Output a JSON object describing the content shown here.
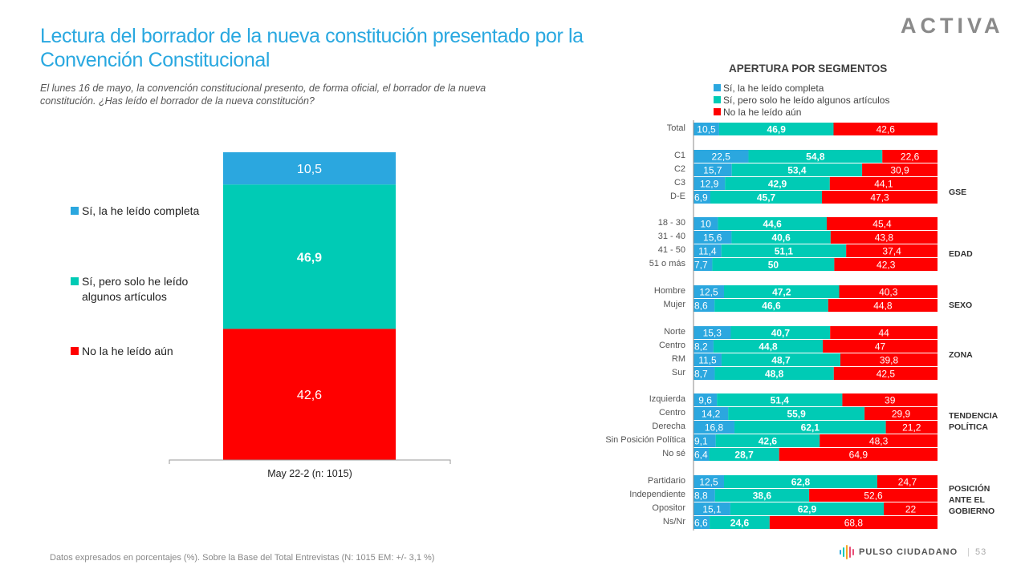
{
  "header": {
    "title": "Lectura del borrador de la nueva constitución presentado por la Convención Constitucional",
    "subtitle": "El lunes 16 de mayo, la convención constitucional presento, de forma oficial, el borrador de la nueva constitución. ¿Has leído el borrador de la nueva constitución?",
    "logo": "ACTIVA"
  },
  "colors": {
    "complete": "#2ba7df",
    "partial": "#00cbb5",
    "not_read": "#ff0000",
    "title": "#29a8e0"
  },
  "chart_data": [
    {
      "type": "bar",
      "stacked": true,
      "orientation": "vertical",
      "categories": [
        "May 22-2 (n: 1015)"
      ],
      "series": [
        {
          "name": "Sí, la he leído completa",
          "values": [
            10.5
          ],
          "labels": [
            "10,5"
          ]
        },
        {
          "name": "Sí, pero solo he leído algunos artículos",
          "values": [
            46.9
          ],
          "labels": [
            "46,9"
          ]
        },
        {
          "name": "No la he leído aún",
          "values": [
            42.6
          ],
          "labels": [
            "42,6"
          ]
        }
      ],
      "legend": {
        "position": "left",
        "entries": [
          "Sí, la he leído completa",
          "Sí, pero solo he leído algunos artículos",
          "No la he leído aún"
        ]
      },
      "ylim": [
        0,
        100
      ],
      "grid": false
    },
    {
      "type": "bar",
      "stacked": true,
      "orientation": "horizontal",
      "title": "APERTURA POR SEGMENTOS",
      "legend": {
        "position": "top",
        "entries": [
          "Sí, la he leído completa",
          "Sí, pero solo he leído algunos artículos",
          "No la he leído aún"
        ]
      },
      "xlim": [
        0,
        100
      ],
      "grid": false,
      "groups": [
        {
          "name": "",
          "rows": [
            {
              "label": "Total",
              "values": [
                10.5,
                46.9,
                42.6
              ],
              "labels": [
                "10,5",
                "46,9",
                "42,6"
              ]
            }
          ]
        },
        {
          "name": "GSE",
          "rows": [
            {
              "label": "C1",
              "values": [
                22.5,
                54.8,
                22.6
              ],
              "labels": [
                "22,5",
                "54,8",
                "22,6"
              ]
            },
            {
              "label": "C2",
              "values": [
                15.7,
                53.4,
                30.9
              ],
              "labels": [
                "15,7",
                "53,4",
                "30,9"
              ]
            },
            {
              "label": "C3",
              "values": [
                12.9,
                42.9,
                44.1
              ],
              "labels": [
                "12,9",
                "42,9",
                "44,1"
              ]
            },
            {
              "label": "D-E",
              "values": [
                6.9,
                45.7,
                47.3
              ],
              "labels": [
                "6,9",
                "45,7",
                "47,3"
              ]
            }
          ]
        },
        {
          "name": "EDAD",
          "rows": [
            {
              "label": "18 - 30",
              "values": [
                10,
                44.6,
                45.4
              ],
              "labels": [
                "10",
                "44,6",
                "45,4"
              ]
            },
            {
              "label": "31 - 40",
              "values": [
                15.6,
                40.6,
                43.8
              ],
              "labels": [
                "15,6",
                "40,6",
                "43,8"
              ]
            },
            {
              "label": "41 - 50",
              "values": [
                11.4,
                51.1,
                37.4
              ],
              "labels": [
                "11,4",
                "51,1",
                "37,4"
              ]
            },
            {
              "label": "51 o más",
              "values": [
                7.7,
                50,
                42.3
              ],
              "labels": [
                "7,7",
                "50",
                "42,3"
              ]
            }
          ]
        },
        {
          "name": "SEXO",
          "rows": [
            {
              "label": "Hombre",
              "values": [
                12.5,
                47.2,
                40.3
              ],
              "labels": [
                "12,5",
                "47,2",
                "40,3"
              ]
            },
            {
              "label": "Mujer",
              "values": [
                8.6,
                46.6,
                44.8
              ],
              "labels": [
                "8,6",
                "46,6",
                "44,8"
              ]
            }
          ]
        },
        {
          "name": "ZONA",
          "rows": [
            {
              "label": "Norte",
              "values": [
                15.3,
                40.7,
                44
              ],
              "labels": [
                "15,3",
                "40,7",
                "44"
              ]
            },
            {
              "label": "Centro",
              "values": [
                8.2,
                44.8,
                47
              ],
              "labels": [
                "8,2",
                "44,8",
                "47"
              ]
            },
            {
              "label": "RM",
              "values": [
                11.5,
                48.7,
                39.8
              ],
              "labels": [
                "11,5",
                "48,7",
                "39,8"
              ]
            },
            {
              "label": "Sur",
              "values": [
                8.7,
                48.8,
                42.5
              ],
              "labels": [
                "8,7",
                "48,8",
                "42,5"
              ]
            }
          ]
        },
        {
          "name": "TENDENCIA POLÍTICA",
          "rows": [
            {
              "label": "Izquierda",
              "values": [
                9.6,
                51.4,
                39
              ],
              "labels": [
                "9,6",
                "51,4",
                "39"
              ]
            },
            {
              "label": "Centro",
              "values": [
                14.2,
                55.9,
                29.9
              ],
              "labels": [
                "14,2",
                "55,9",
                "29,9"
              ]
            },
            {
              "label": "Derecha",
              "values": [
                16.8,
                62.1,
                21.2
              ],
              "labels": [
                "16,8",
                "62,1",
                "21,2"
              ]
            },
            {
              "label": "Sin Posición Política",
              "values": [
                9.1,
                42.6,
                48.3
              ],
              "labels": [
                "9,1",
                "42,6",
                "48,3"
              ]
            },
            {
              "label": "No sé",
              "values": [
                6.4,
                28.7,
                64.9
              ],
              "labels": [
                "6,4",
                "28,7",
                "64,9"
              ]
            }
          ]
        },
        {
          "name": "POSICIÓN ANTE EL GOBIERNO",
          "rows": [
            {
              "label": "Partidario",
              "values": [
                12.5,
                62.8,
                24.7
              ],
              "labels": [
                "12,5",
                "62,8",
                "24,7"
              ]
            },
            {
              "label": "Independiente",
              "values": [
                8.8,
                38.6,
                52.6
              ],
              "labels": [
                "8,8",
                "38,6",
                "52,6"
              ]
            },
            {
              "label": "Opositor",
              "values": [
                15.1,
                62.9,
                22
              ],
              "labels": [
                "15,1",
                "62,9",
                "22"
              ]
            },
            {
              "label": "Ns/Nr",
              "values": [
                6.6,
                24.6,
                68.8
              ],
              "labels": [
                "6,6",
                "24,6",
                "68,8"
              ]
            }
          ]
        }
      ]
    }
  ],
  "footer": {
    "note": "Datos expresados en porcentajes (%). Sobre la Base del Total Entrevistas (N: 1015  EM: +/- 3,1 %)",
    "brand": "PULSO CIUDADANO",
    "separator": "|",
    "page": "53"
  }
}
